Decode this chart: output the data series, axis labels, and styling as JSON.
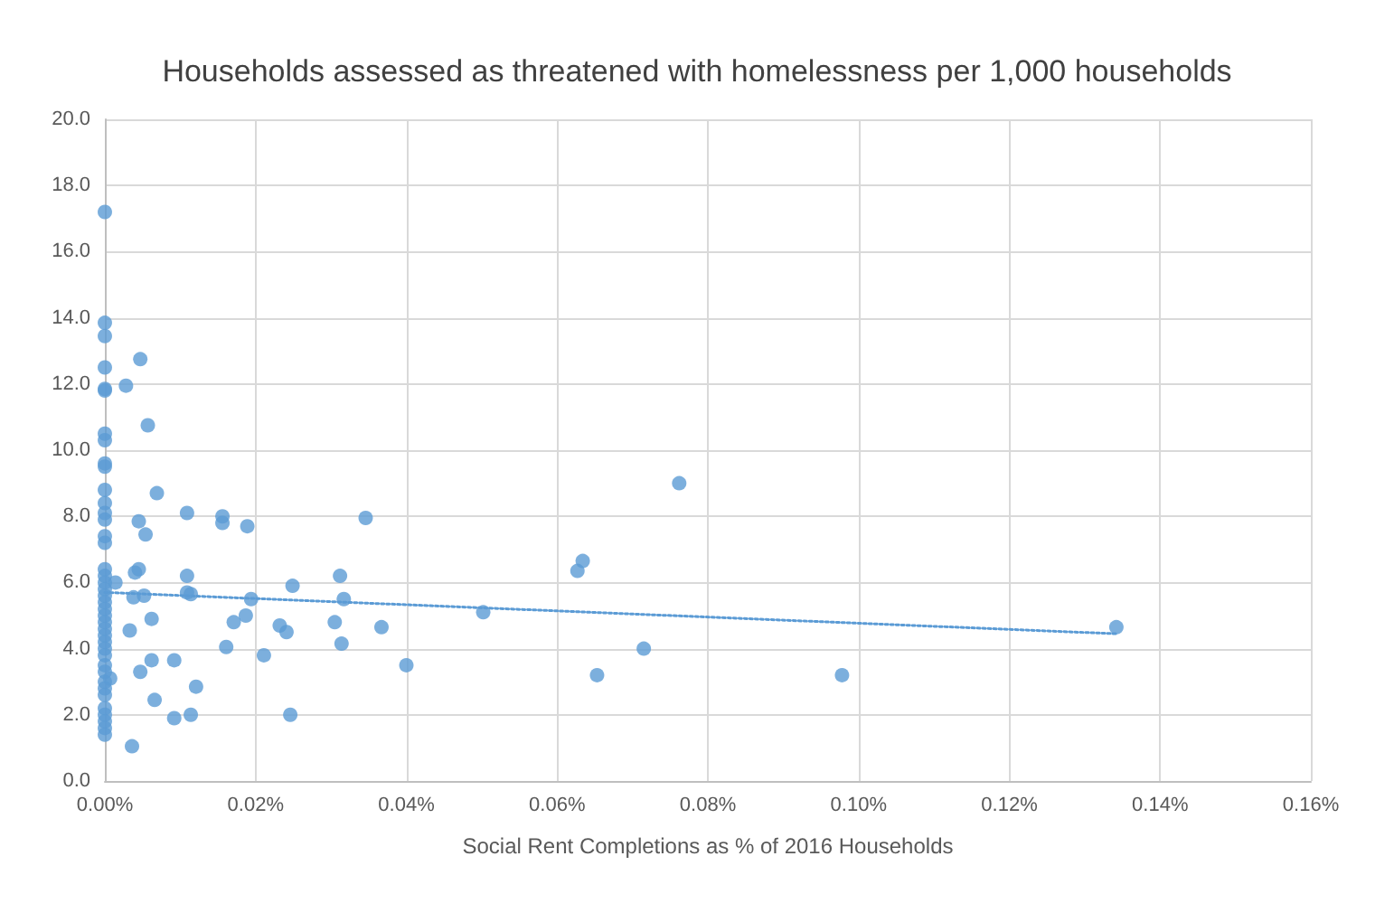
{
  "chart_data": {
    "type": "scatter",
    "title": "Households assessed as threatened with homelessness per 1,000 households",
    "xlabel": "Social Rent Completions as % of 2016 Households",
    "xlim": [
      0,
      0.16
    ],
    "xticks": [
      {
        "value": 0,
        "label": "0.00%"
      },
      {
        "value": 0.02,
        "label": "0.02%"
      },
      {
        "value": 0.04,
        "label": "0.04%"
      },
      {
        "value": 0.06,
        "label": "0.06%"
      },
      {
        "value": 0.08,
        "label": "0.08%"
      },
      {
        "value": 0.1,
        "label": "0.10%"
      },
      {
        "value": 0.12,
        "label": "0.12%"
      },
      {
        "value": 0.14,
        "label": "0.14%"
      },
      {
        "value": 0.16,
        "label": "0.16%"
      }
    ],
    "ylim": [
      0,
      20
    ],
    "yticks": [
      {
        "value": 0,
        "label": "0.0"
      },
      {
        "value": 2,
        "label": "2.0"
      },
      {
        "value": 4,
        "label": "4.0"
      },
      {
        "value": 6,
        "label": "6.0"
      },
      {
        "value": 8,
        "label": "8.0"
      },
      {
        "value": 10,
        "label": "10.0"
      },
      {
        "value": 12,
        "label": "12.0"
      },
      {
        "value": 14,
        "label": "14.0"
      },
      {
        "value": 16,
        "label": "16.0"
      },
      {
        "value": 18,
        "label": "18.0"
      },
      {
        "value": 20,
        "label": "20.0"
      }
    ],
    "grid": true,
    "marker": "circle",
    "series": [
      {
        "color": "#5b9bd5",
        "x": [
          0,
          0,
          0,
          0,
          0,
          0,
          0,
          0,
          0,
          0,
          0,
          0,
          0,
          0,
          0,
          0,
          0,
          0,
          0,
          0,
          0,
          0,
          0,
          0,
          0,
          0,
          0,
          0,
          0,
          0,
          0,
          0,
          0,
          0,
          0,
          0,
          0,
          0,
          0,
          0,
          0.0047,
          0.0028,
          0.0057,
          0.0069,
          0.0109,
          0.0156,
          0.0156,
          0.0189,
          0.0346,
          0.0045,
          0.0054,
          0.004,
          0.0045,
          0.0109,
          0.0312,
          0.0627,
          0.0634,
          0.0762,
          0.0014,
          0.0038,
          0.0052,
          0.0109,
          0.0114,
          0.0194,
          0.0249,
          0.0317,
          0.0502,
          0.0062,
          0.0033,
          0.0171,
          0.0187,
          0.0305,
          0.0232,
          0.0241,
          0.0367,
          0.0161,
          0.0314,
          0.0211,
          0.04,
          0.0715,
          0.0062,
          0.0092,
          0.0047,
          0.0121,
          0.0653,
          0.0978,
          0.1342,
          0.0007,
          0.0066,
          0.0092,
          0.0114,
          0.0246,
          0.0036
        ],
        "values": [
          17.2,
          13.85,
          13.45,
          12.5,
          11.85,
          11.8,
          10.5,
          10.3,
          9.6,
          9.5,
          8.8,
          8.4,
          8.1,
          7.9,
          7.4,
          7.2,
          6.4,
          6.2,
          6.0,
          5.8,
          5.6,
          5.4,
          5.2,
          5.0,
          4.8,
          4.6,
          4.4,
          4.2,
          4.0,
          3.8,
          3.5,
          3.3,
          3.0,
          2.8,
          2.6,
          2.2,
          2.0,
          1.8,
          1.6,
          1.4,
          12.75,
          11.95,
          10.75,
          8.7,
          8.1,
          8.0,
          7.8,
          7.7,
          7.95,
          7.85,
          7.45,
          6.3,
          6.4,
          6.2,
          6.2,
          6.35,
          6.65,
          9.0,
          6.0,
          5.55,
          5.6,
          5.7,
          5.65,
          5.5,
          5.9,
          5.5,
          5.1,
          4.9,
          4.55,
          4.8,
          5.0,
          4.8,
          4.7,
          4.5,
          4.65,
          4.05,
          4.15,
          3.8,
          3.5,
          4.0,
          3.65,
          3.65,
          3.3,
          2.85,
          3.2,
          3.2,
          4.65,
          3.1,
          2.45,
          1.9,
          2.0,
          2.0,
          1.05
        ]
      },
      {
        "type": "line",
        "color": "#5b9bd5",
        "x": [
          0,
          0.1342
        ],
        "values": [
          5.7,
          4.45
        ],
        "line_style": "dotted",
        "marker": "none"
      }
    ]
  }
}
